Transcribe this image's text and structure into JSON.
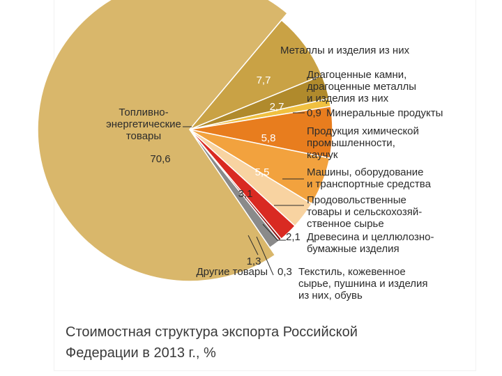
{
  "chart_data": {
    "type": "pie",
    "title_lines": [
      "Стоимостная структура экспорта Российской",
      "Федерации в 2013 г., %"
    ],
    "slices": [
      {
        "label_lines": [
          "Топливно-",
          "энергетические",
          "товары"
        ],
        "value": 70.6,
        "value_text": "70,6",
        "color": "#d9b76b"
      },
      {
        "label_lines": [
          "Металлы и изделия из них"
        ],
        "value": 7.7,
        "value_text": "7,7",
        "color": "#c9a245"
      },
      {
        "label_lines": [
          "Драгоценные камни,",
          "драгоценные металлы",
          "и изделия из них"
        ],
        "value": 2.7,
        "value_text": "2,7",
        "color": "#b08a2c"
      },
      {
        "label_lines": [
          "Минеральные продукты"
        ],
        "value": 0.9,
        "value_text": "0,9",
        "color": "#f0c040"
      },
      {
        "label_lines": [
          "Продукция химической",
          "промышленности,",
          "каучук"
        ],
        "value": 5.8,
        "value_text": "5,8",
        "color": "#e87d1e"
      },
      {
        "label_lines": [
          "Машины, оборудование",
          "и транспортные средства"
        ],
        "value": 5.5,
        "value_text": "5,5",
        "color": "#f2a23e"
      },
      {
        "label_lines": [
          "Продовольственные",
          "товары и сельскохозяй-",
          "ственное сырье"
        ],
        "value": 3.1,
        "value_text": "3,1",
        "color": "#f8d3a1"
      },
      {
        "label_lines": [
          "Древесина и целлюлозно-",
          "бумажные изделия"
        ],
        "value": 2.1,
        "value_text": "2,1",
        "color": "#d92a22"
      },
      {
        "label_lines": [
          "Текстиль, кожевенное",
          "сырье, пушнина и изделия",
          "из них, обувь"
        ],
        "value": 0.3,
        "value_text": "0,3",
        "color": "#8c1414"
      },
      {
        "label_lines": [
          "Другие товары"
        ],
        "value": 1.3,
        "value_text": "1,3",
        "color": "#8a8a8a"
      }
    ]
  }
}
